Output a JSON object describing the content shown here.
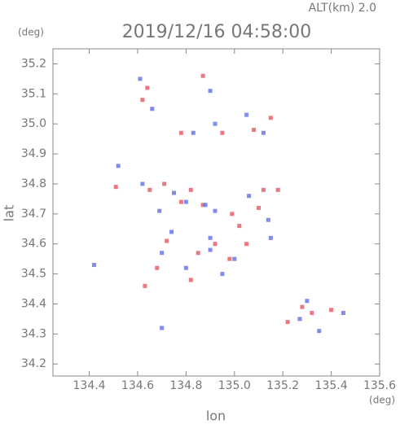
{
  "chart_data": {
    "type": "scatter",
    "title": "2019/12/16 04:58:00",
    "subtitle": "ALT(km) 2.0",
    "y_unit": "(deg)",
    "x_unit": "(deg)",
    "xlabel": "lon",
    "ylabel": "lat",
    "xlim": [
      134.25,
      135.6
    ],
    "ylim": [
      34.16,
      35.25
    ],
    "xticks": [
      {
        "value": 134.4,
        "label": "134.4"
      },
      {
        "value": 134.6,
        "label": "134.6"
      },
      {
        "value": 134.8,
        "label": "134.8"
      },
      {
        "value": 135.0,
        "label": "135.0"
      },
      {
        "value": 135.2,
        "label": "135.2"
      },
      {
        "value": 135.4,
        "label": "135.4"
      },
      {
        "value": 135.6,
        "label": "135.6"
      }
    ],
    "yticks": [
      {
        "value": 34.2,
        "label": "34.2"
      },
      {
        "value": 34.3,
        "label": "34.3"
      },
      {
        "value": 34.4,
        "label": "34.4"
      },
      {
        "value": 34.5,
        "label": "34.5"
      },
      {
        "value": 34.6,
        "label": "34.6"
      },
      {
        "value": 34.7,
        "label": "34.7"
      },
      {
        "value": 34.8,
        "label": "34.8"
      },
      {
        "value": 34.9,
        "label": "34.9"
      },
      {
        "value": 35.0,
        "label": "35.0"
      },
      {
        "value": 35.1,
        "label": "35.1"
      },
      {
        "value": 35.2,
        "label": "35.2"
      }
    ],
    "series": [
      {
        "color": "#e8606a",
        "x": [
          134.62,
          134.64,
          134.87,
          134.78,
          134.95,
          135.08,
          135.15,
          135.12,
          134.51,
          134.65,
          134.82,
          134.78,
          135.1,
          135.18,
          134.72,
          134.85,
          134.92,
          135.02,
          134.68,
          134.82,
          134.98,
          134.63,
          135.28,
          135.32,
          135.4,
          135.22,
          134.99,
          134.87,
          134.71,
          135.05
        ],
        "y": [
          35.08,
          35.12,
          35.16,
          34.97,
          34.97,
          34.98,
          35.02,
          34.78,
          34.79,
          34.78,
          34.78,
          34.74,
          34.72,
          34.78,
          34.61,
          34.57,
          34.6,
          34.66,
          34.52,
          34.48,
          34.55,
          34.46,
          34.39,
          34.37,
          34.38,
          34.34,
          34.7,
          34.73,
          34.8,
          34.6
        ]
      },
      {
        "color": "#6a78e8",
        "x": [
          134.61,
          134.66,
          134.9,
          134.83,
          134.92,
          135.05,
          135.12,
          134.52,
          134.62,
          134.75,
          134.8,
          134.92,
          135.06,
          135.14,
          134.74,
          134.9,
          135.0,
          134.7,
          134.8,
          134.95,
          134.9,
          135.3,
          135.27,
          135.35,
          135.45,
          134.88,
          135.15,
          134.7,
          134.42,
          134.69
        ],
        "y": [
          35.15,
          35.05,
          35.11,
          34.97,
          35.0,
          35.03,
          34.97,
          34.86,
          34.8,
          34.77,
          34.74,
          34.71,
          34.76,
          34.68,
          34.64,
          34.58,
          34.55,
          34.57,
          34.52,
          34.5,
          34.62,
          34.41,
          34.35,
          34.31,
          34.37,
          34.73,
          34.62,
          34.32,
          34.53,
          34.71
        ]
      }
    ]
  }
}
